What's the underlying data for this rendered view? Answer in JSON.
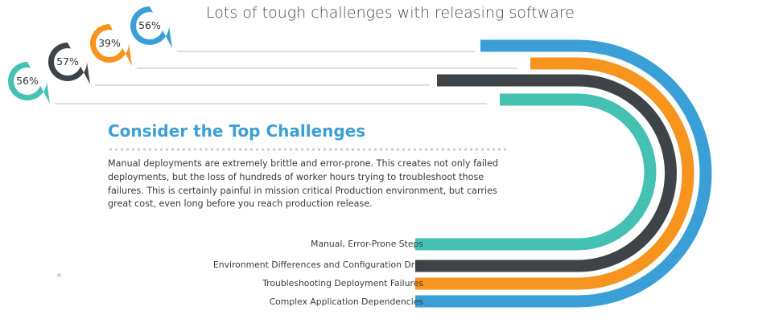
{
  "title": "Lots of tough challenges with releasing software",
  "section": {
    "heading": "Consider the Top Challenges",
    "body": "Manual deployments are extremely brittle and error-prone. This creates not only failed deployments, but the loss of hundreds of worker hours trying to troubleshoot those failures. This is certainly painful in mission critical Production environment, but carries great cost, even long before you reach production release."
  },
  "colors": {
    "blue": "#3a9fd6",
    "orange": "#f7941d",
    "dark": "#3f4448",
    "teal": "#45c1b4"
  },
  "challenges": [
    {
      "label": "Manual, Error-Prone Steps",
      "percent": "56%",
      "value": 56,
      "color": "#45c1b4"
    },
    {
      "label": "Environment Differences and Configuration Drift",
      "percent": "57%",
      "value": 57,
      "color": "#3f4448"
    },
    {
      "label": "Troubleshooting Deployment Failures",
      "percent": "39%",
      "value": 39,
      "color": "#f7941d"
    },
    {
      "label": "Complex Application Dependencies",
      "percent": "56%",
      "value": 56,
      "color": "#3a9fd6"
    }
  ]
}
